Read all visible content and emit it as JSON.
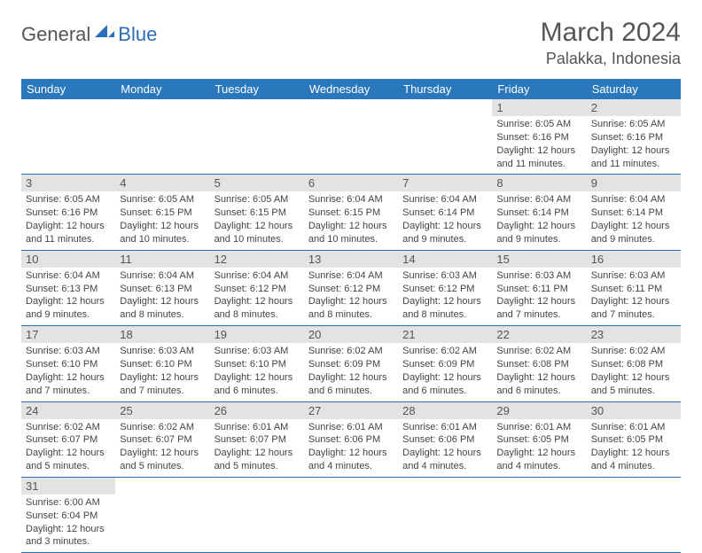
{
  "logo": {
    "text1": "General",
    "text2": "Blue"
  },
  "title": "March 2024",
  "location": "Palakka, Indonesia",
  "colors": {
    "header_bg": "#2a77bb",
    "header_fg": "#ffffff",
    "accent": "#2a6db8",
    "daynum_bg": "#e3e3e3",
    "text": "#444444"
  },
  "weekdays": [
    "Sunday",
    "Monday",
    "Tuesday",
    "Wednesday",
    "Thursday",
    "Friday",
    "Saturday"
  ],
  "grid": {
    "rows": 6,
    "cols": 7,
    "first_day_col": 5,
    "days_in_month": 31
  },
  "days": {
    "1": {
      "sunrise": "6:05 AM",
      "sunset": "6:16 PM",
      "daylight": "12 hours and 11 minutes."
    },
    "2": {
      "sunrise": "6:05 AM",
      "sunset": "6:16 PM",
      "daylight": "12 hours and 11 minutes."
    },
    "3": {
      "sunrise": "6:05 AM",
      "sunset": "6:16 PM",
      "daylight": "12 hours and 11 minutes."
    },
    "4": {
      "sunrise": "6:05 AM",
      "sunset": "6:15 PM",
      "daylight": "12 hours and 10 minutes."
    },
    "5": {
      "sunrise": "6:05 AM",
      "sunset": "6:15 PM",
      "daylight": "12 hours and 10 minutes."
    },
    "6": {
      "sunrise": "6:04 AM",
      "sunset": "6:15 PM",
      "daylight": "12 hours and 10 minutes."
    },
    "7": {
      "sunrise": "6:04 AM",
      "sunset": "6:14 PM",
      "daylight": "12 hours and 9 minutes."
    },
    "8": {
      "sunrise": "6:04 AM",
      "sunset": "6:14 PM",
      "daylight": "12 hours and 9 minutes."
    },
    "9": {
      "sunrise": "6:04 AM",
      "sunset": "6:14 PM",
      "daylight": "12 hours and 9 minutes."
    },
    "10": {
      "sunrise": "6:04 AM",
      "sunset": "6:13 PM",
      "daylight": "12 hours and 9 minutes."
    },
    "11": {
      "sunrise": "6:04 AM",
      "sunset": "6:13 PM",
      "daylight": "12 hours and 8 minutes."
    },
    "12": {
      "sunrise": "6:04 AM",
      "sunset": "6:12 PM",
      "daylight": "12 hours and 8 minutes."
    },
    "13": {
      "sunrise": "6:04 AM",
      "sunset": "6:12 PM",
      "daylight": "12 hours and 8 minutes."
    },
    "14": {
      "sunrise": "6:03 AM",
      "sunset": "6:12 PM",
      "daylight": "12 hours and 8 minutes."
    },
    "15": {
      "sunrise": "6:03 AM",
      "sunset": "6:11 PM",
      "daylight": "12 hours and 7 minutes."
    },
    "16": {
      "sunrise": "6:03 AM",
      "sunset": "6:11 PM",
      "daylight": "12 hours and 7 minutes."
    },
    "17": {
      "sunrise": "6:03 AM",
      "sunset": "6:10 PM",
      "daylight": "12 hours and 7 minutes."
    },
    "18": {
      "sunrise": "6:03 AM",
      "sunset": "6:10 PM",
      "daylight": "12 hours and 7 minutes."
    },
    "19": {
      "sunrise": "6:03 AM",
      "sunset": "6:10 PM",
      "daylight": "12 hours and 6 minutes."
    },
    "20": {
      "sunrise": "6:02 AM",
      "sunset": "6:09 PM",
      "daylight": "12 hours and 6 minutes."
    },
    "21": {
      "sunrise": "6:02 AM",
      "sunset": "6:09 PM",
      "daylight": "12 hours and 6 minutes."
    },
    "22": {
      "sunrise": "6:02 AM",
      "sunset": "6:08 PM",
      "daylight": "12 hours and 6 minutes."
    },
    "23": {
      "sunrise": "6:02 AM",
      "sunset": "6:08 PM",
      "daylight": "12 hours and 5 minutes."
    },
    "24": {
      "sunrise": "6:02 AM",
      "sunset": "6:07 PM",
      "daylight": "12 hours and 5 minutes."
    },
    "25": {
      "sunrise": "6:02 AM",
      "sunset": "6:07 PM",
      "daylight": "12 hours and 5 minutes."
    },
    "26": {
      "sunrise": "6:01 AM",
      "sunset": "6:07 PM",
      "daylight": "12 hours and 5 minutes."
    },
    "27": {
      "sunrise": "6:01 AM",
      "sunset": "6:06 PM",
      "daylight": "12 hours and 4 minutes."
    },
    "28": {
      "sunrise": "6:01 AM",
      "sunset": "6:06 PM",
      "daylight": "12 hours and 4 minutes."
    },
    "29": {
      "sunrise": "6:01 AM",
      "sunset": "6:05 PM",
      "daylight": "12 hours and 4 minutes."
    },
    "30": {
      "sunrise": "6:01 AM",
      "sunset": "6:05 PM",
      "daylight": "12 hours and 4 minutes."
    },
    "31": {
      "sunrise": "6:00 AM",
      "sunset": "6:04 PM",
      "daylight": "12 hours and 3 minutes."
    }
  },
  "labels": {
    "sunrise": "Sunrise: ",
    "sunset": "Sunset: ",
    "daylight": "Daylight: "
  }
}
